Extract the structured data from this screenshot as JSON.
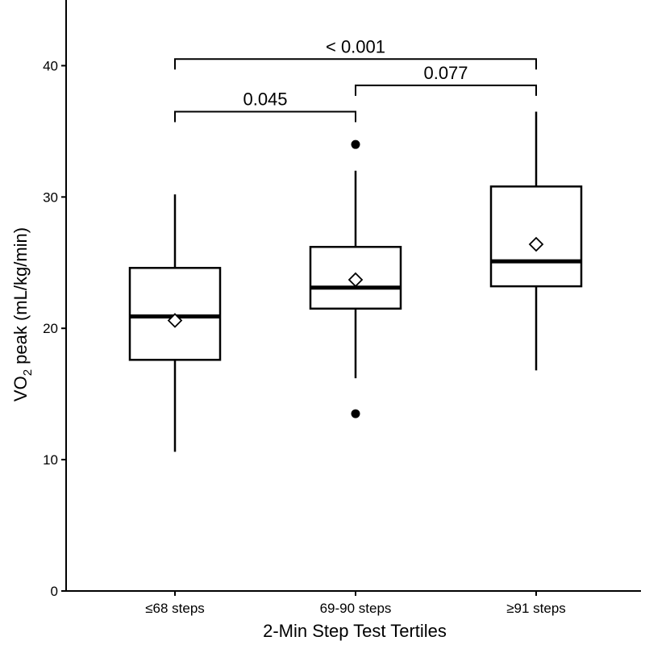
{
  "chart_data": {
    "type": "boxplot",
    "xlabel": "2-Min Step Test Tertiles",
    "ylabel": {
      "prefix": "VO",
      "subscript": "2",
      "suffix": " peak  (mL/kg/min)"
    },
    "ylim": [
      0,
      45
    ],
    "y_ticks": [
      0,
      10,
      20,
      30,
      40
    ],
    "categories": [
      "≤68 steps",
      "69-90 steps",
      "≥91 steps"
    ],
    "boxes": [
      {
        "category": "≤68 steps",
        "whisker_low": 10.6,
        "q1": 17.6,
        "median": 20.9,
        "q3": 24.6,
        "whisker_high": 30.2,
        "mean": 20.6,
        "outliers": []
      },
      {
        "category": "69-90 steps",
        "whisker_low": 16.2,
        "q1": 21.5,
        "median": 23.1,
        "q3": 26.2,
        "whisker_high": 32.0,
        "mean": 23.7,
        "outliers": [
          34.0,
          13.5
        ]
      },
      {
        "category": "≥91 steps",
        "whisker_low": 16.8,
        "q1": 23.2,
        "median": 25.1,
        "q3": 30.8,
        "whisker_high": 36.5,
        "mean": 26.4,
        "outliers": []
      }
    ],
    "comparisons": [
      {
        "from": 0,
        "to": 1,
        "y": 36.5,
        "label": "0.045"
      },
      {
        "from": 1,
        "to": 2,
        "y": 38.5,
        "label": "0.077"
      },
      {
        "from": 0,
        "to": 2,
        "y": 40.5,
        "label": "< 0.001"
      }
    ]
  }
}
